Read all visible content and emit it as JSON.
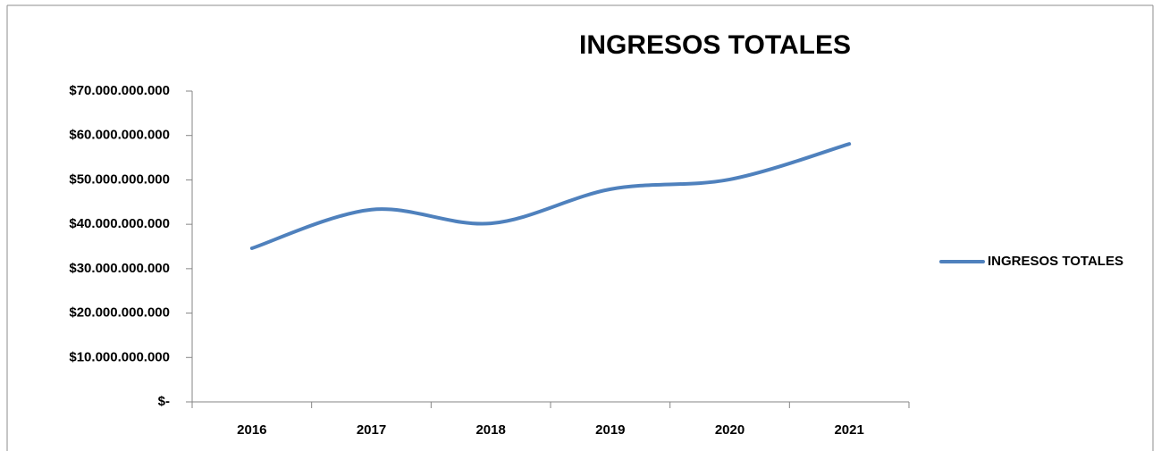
{
  "chart_data": {
    "type": "line",
    "title": "INGRESOS TOTALES",
    "categories": [
      "2016",
      "2017",
      "2018",
      "2019",
      "2020",
      "2021"
    ],
    "series": [
      {
        "name": "INGRESOS TOTALES",
        "color": "#4f81bd",
        "values": [
          34600000000,
          43300000000,
          40200000000,
          47900000000,
          50100000000,
          58100000000
        ]
      }
    ],
    "ylim": [
      0,
      70000000000
    ],
    "yticks": [
      {
        "value": 0,
        "label": "$-"
      },
      {
        "value": 10000000000,
        "label": "$10.000.000.000"
      },
      {
        "value": 20000000000,
        "label": "$20.000.000.000"
      },
      {
        "value": 30000000000,
        "label": "$30.000.000.000"
      },
      {
        "value": 40000000000,
        "label": "$40.000.000.000"
      },
      {
        "value": 50000000000,
        "label": "$50.000.000.000"
      },
      {
        "value": 60000000000,
        "label": "$60.000.000.000"
      },
      {
        "value": 70000000000,
        "label": "$70.000.000.000"
      }
    ],
    "grid": false,
    "smooth": true,
    "legend": "right"
  }
}
